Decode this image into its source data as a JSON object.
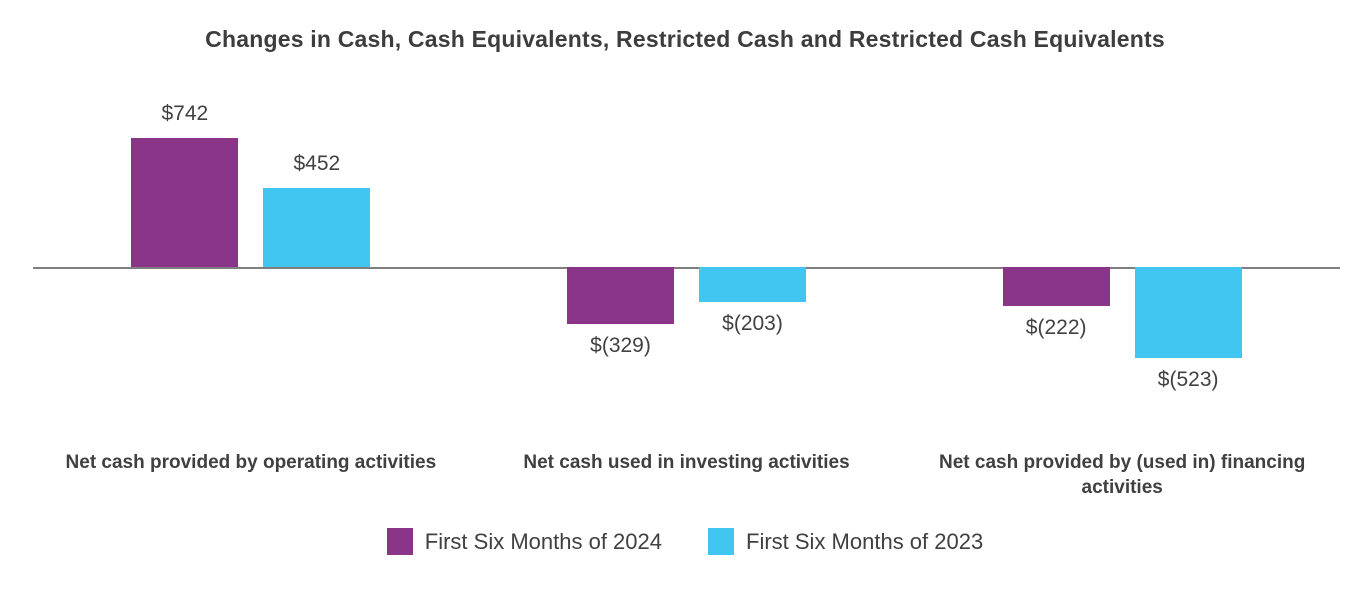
{
  "chart_data": {
    "type": "bar",
    "title": "Changes in Cash, Cash Equivalents, Restricted Cash and Restricted Cash Equivalents",
    "categories": [
      "Net cash provided by operating activities",
      "Net cash used in investing activities",
      "Net cash provided by (used in) financing activities"
    ],
    "series": [
      {
        "name": "First Six Months of 2024",
        "color": "#8A3588",
        "values": [
          742,
          -329,
          -222
        ],
        "labels": [
          "$742",
          "$(329)",
          "$(222)"
        ]
      },
      {
        "name": "First Six Months of 2023",
        "color": "#40C6F0",
        "values": [
          452,
          -203,
          -523
        ],
        "labels": [
          "$452",
          "$(203)",
          "$(523)"
        ]
      }
    ],
    "ylim": [
      -600,
      800
    ],
    "xlabel": "",
    "ylabel": "",
    "grid": false,
    "legend_position": "bottom"
  }
}
